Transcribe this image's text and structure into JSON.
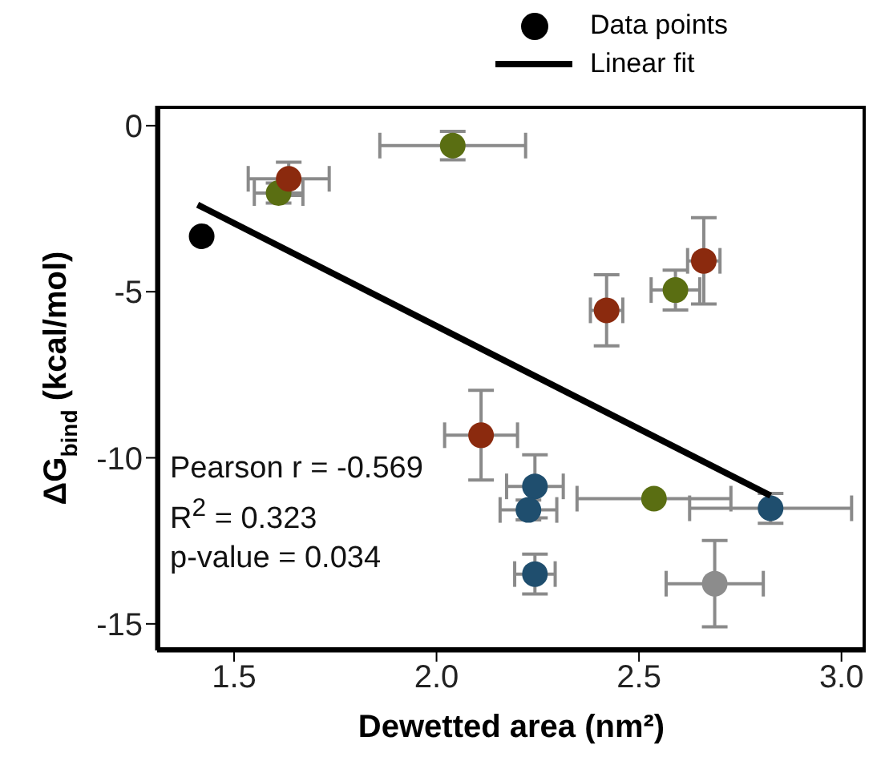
{
  "chart_data": {
    "type": "scatter",
    "xlabel": "Dewetted area (nm²)",
    "ylabel": "ΔG$_{bind}$ (kcal/mol)",
    "xlim": [
      1.31,
      3.06
    ],
    "ylim": [
      -15.8,
      0.6
    ],
    "xticks": [
      1.5,
      {
        "value": 2,
        "label": "2.0"
      },
      2.5,
      {
        "value": 3,
        "label": "3.0"
      }
    ],
    "yticks": [
      0,
      -5,
      -10,
      -15
    ],
    "legend": "top right",
    "annotations": [
      "Pearson r = -0.569",
      "R$^{2}$ = 0.323",
      "p-value = 0.034"
    ],
    "series": [
      {
        "name": "Data points",
        "type": "scatter",
        "marker": "circle",
        "color": "#000000",
        "colors": [
          "#000000",
          "#5a6e12",
          "#8b2a0e",
          "#5a6e12",
          "#8b2a0e",
          "#5a6e12",
          "#8b2a0e",
          "#8b2a0e",
          "#1f4e6e",
          "#1f4e6e",
          "#1f4e6e",
          "#5a6e12",
          "#1f4e6e",
          "#8c8c8c"
        ],
        "x": [
          1.42,
          1.61,
          1.635,
          2.04,
          2.42,
          2.59,
          2.66,
          2.11,
          2.243,
          2.227,
          2.243,
          2.537,
          2.825,
          2.687
        ],
        "values": [
          -3.33,
          -2.03,
          -1.6,
          -0.6,
          -5.56,
          -4.95,
          -4.07,
          -9.32,
          -10.86,
          -11.57,
          -13.5,
          -11.23,
          -11.52,
          -13.79
        ],
        "errors": [
          null,
          0.3,
          0.5,
          0.43,
          1.07,
          0.6,
          1.3,
          1.35,
          0.95,
          0.3,
          0.6,
          null,
          0.45,
          1.3
        ],
        "xerrors": [
          null,
          0.06,
          0.1,
          0.18,
          0.04,
          0.06,
          0.04,
          0.09,
          0.07,
          0.07,
          0.05,
          0.19,
          0.2,
          0.12
        ]
      },
      {
        "name": "Linear fit",
        "type": "line",
        "marker": "none",
        "color": "#000000",
        "x": [
          1.41,
          2.825
        ],
        "values": [
          -2.38,
          -11.14
        ]
      }
    ]
  }
}
